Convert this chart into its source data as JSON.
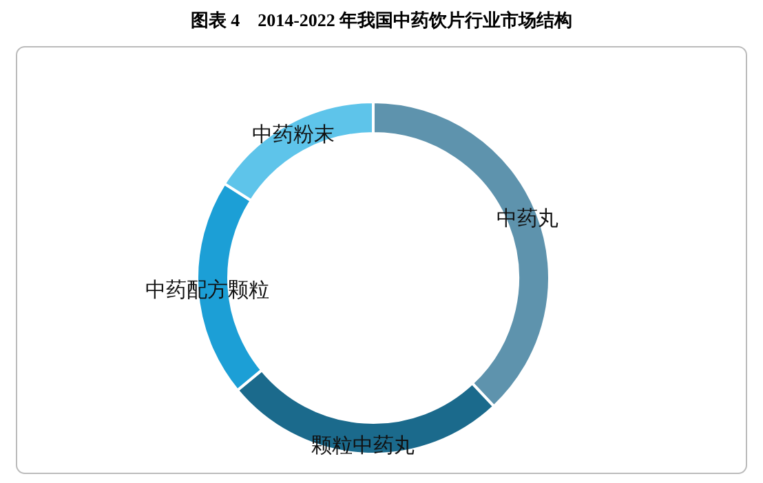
{
  "chart_data": {
    "type": "donut",
    "title": "图表 4　2014-2022 年我国中药饮片行业市场结构",
    "categories": [
      "中药丸",
      "颗粒中药丸",
      "中药配方颗粒",
      "中药粉末"
    ],
    "values": [
      38,
      26,
      20,
      16
    ],
    "colors": [
      "#5e93ad",
      "#1b6a8c",
      "#1c9fd6",
      "#5ec4ea"
    ]
  }
}
